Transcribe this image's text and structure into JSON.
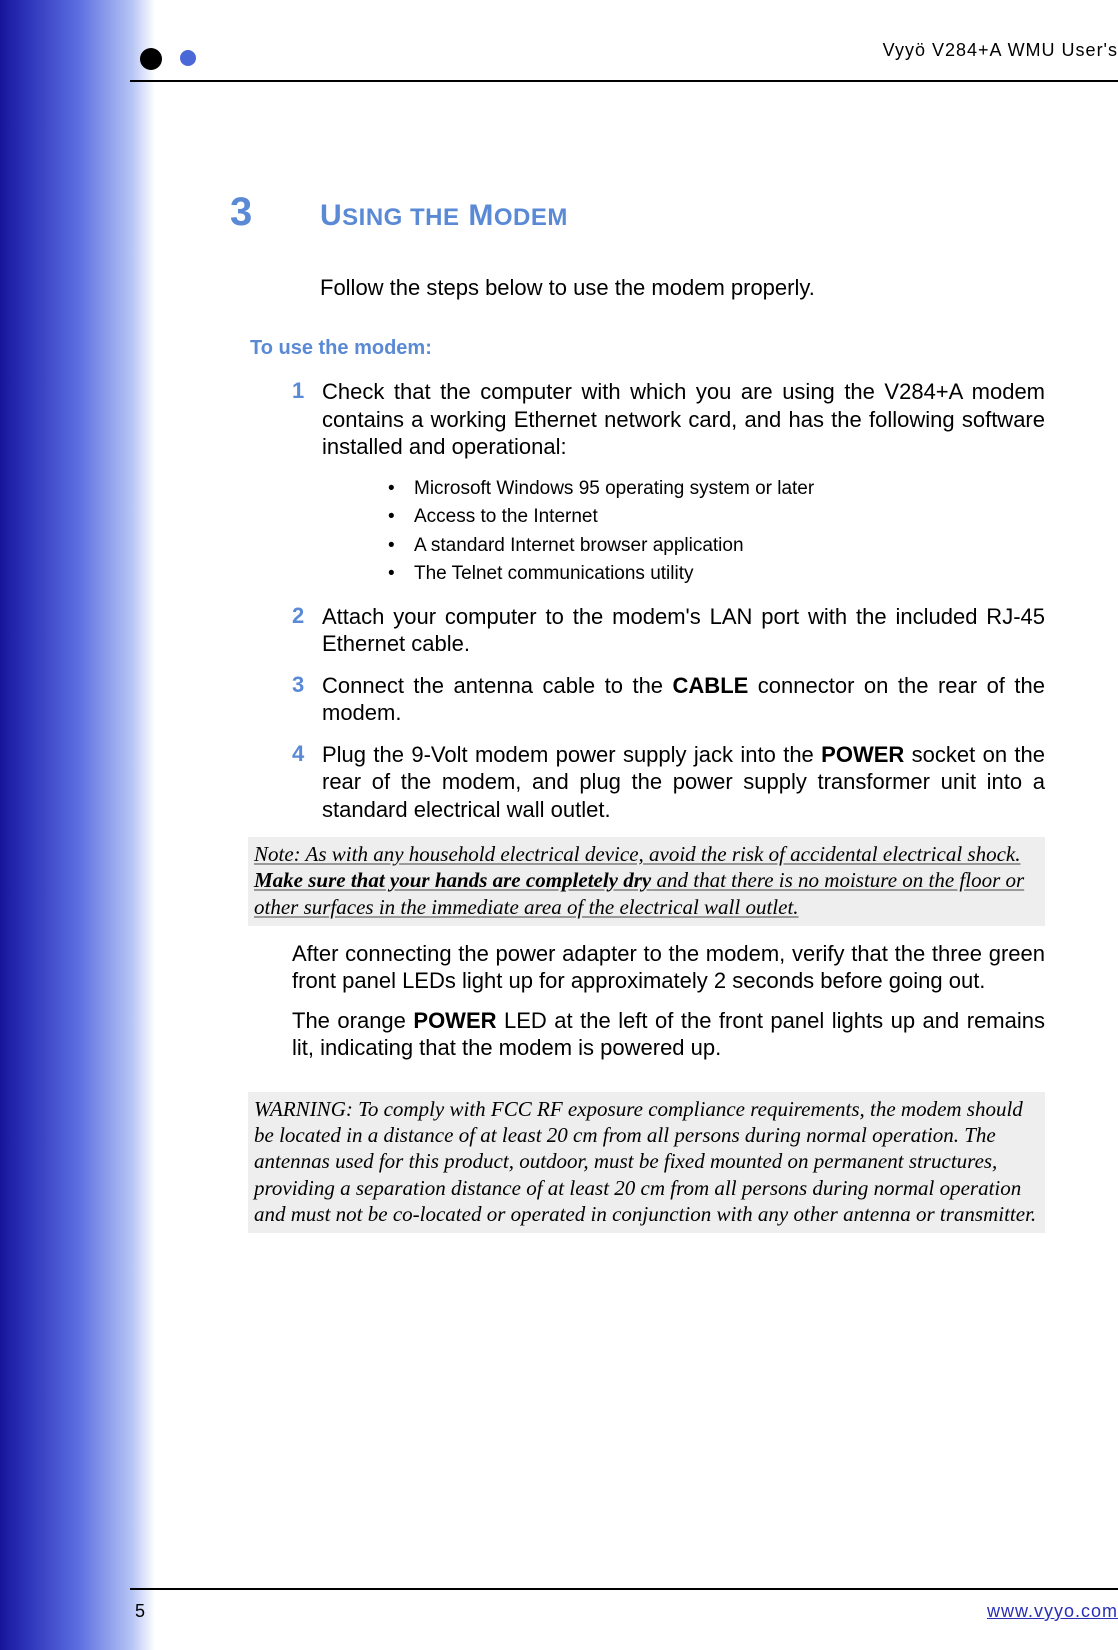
{
  "colors": {
    "accent_blue": "#5a89d6",
    "dark_blue": "#2a2fb5",
    "gradient_start": "#16159a",
    "gradient_end": "#ffffff",
    "note_bg": "#eeeeee",
    "text": "#000000"
  },
  "fonts": {
    "body": "Arial",
    "body_size_pt": 16,
    "note": "Times New Roman",
    "note_style": "italic",
    "header": "Century Gothic"
  },
  "header": {
    "product": "Vyyö V284+A WMU User's"
  },
  "chapter": {
    "number": "3",
    "title_word1_first": "U",
    "title_word1_rest": "SING THE",
    "title_word2_first": "M",
    "title_word2_rest": "ODEM"
  },
  "lead": "Follow the steps below to use the modem properly.",
  "subhead": "To use the modem:",
  "steps": [
    {
      "n": "1",
      "text": "Check that the computer with which you are using the V284+A modem contains a working Ethernet network card, and has the following software installed and operational:"
    },
    {
      "n": "2",
      "text": "Attach your computer to the modem's LAN port with the included RJ-45 Ethernet cable."
    },
    {
      "n": "3",
      "text_pre": "Connect the antenna cable to the ",
      "text_bold": "CABLE",
      "text_post": " connector on the rear of the modem."
    },
    {
      "n": "4",
      "text_pre": "Plug the 9-Volt modem power supply jack into the ",
      "text_bold": "POWER",
      "text_post": " socket on the rear of the modem, and plug the power supply transformer unit into a standard electrical wall outlet."
    }
  ],
  "bullets": [
    "Microsoft Windows 95 operating system or later",
    "Access to the Internet",
    "A standard Internet browser application",
    "The Telnet communications utility"
  ],
  "note": {
    "pre": "Note: As with any household electrical device, avoid the risk of accidental electrical shock. ",
    "bold": "Make sure that your hands are completely dry",
    "post": " and that there is no moisture on the floor or other surfaces in the immediate area of the electrical wall outlet."
  },
  "after1": "After connecting the power adapter to the modem, verify that the three green front panel LEDs light up for approximately 2 seconds before going out.",
  "after2_pre": "The orange ",
  "after2_bold": "POWER",
  "after2_post": " LED at the left of the front panel lights up and remains lit, indicating that the modem is powered up.",
  "warning": "WARNING:   To comply with FCC RF exposure compliance requirements, the modem should be located in a distance of at least 20 cm from all persons during normal operation. The antennas used for this product, outdoor, must be fixed mounted on permanent structures, providing a separation distance of at least 20 cm from all persons during normal operation and must not be co-located or operated in conjunction with any other antenna or transmitter.",
  "footer": {
    "page": "5",
    "url": "www.vyyo.com"
  }
}
